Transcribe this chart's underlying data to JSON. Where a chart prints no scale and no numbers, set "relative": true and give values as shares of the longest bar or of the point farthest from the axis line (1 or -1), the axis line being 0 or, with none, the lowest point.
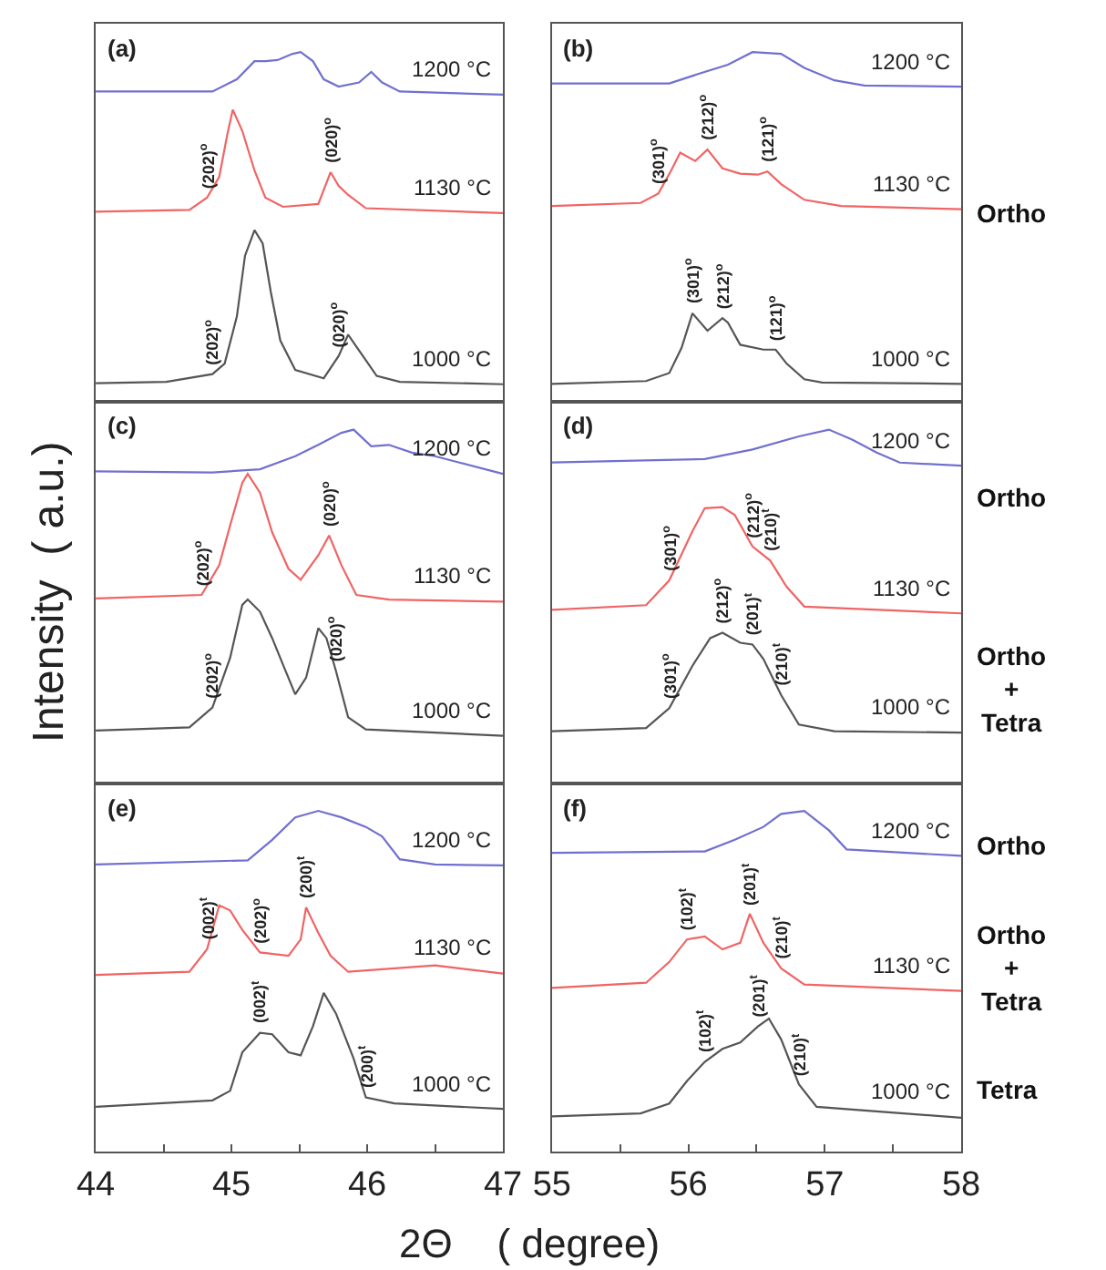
{
  "chart_data": [
    {
      "type": "line",
      "title": "(a)",
      "relative": true,
      "tick_labels": false,
      "xlim": [
        44,
        47
      ],
      "series": [
        {
          "name": "1200 °C",
          "color": "#7070d0",
          "x": [
            44.0,
            44.86,
            45.04,
            45.17,
            45.25,
            45.34,
            45.45,
            45.51,
            45.6,
            45.68,
            45.79,
            45.94,
            46.03,
            46.11,
            46.24,
            47.0
          ],
          "values": [
            0.887,
            0.887,
            0.922,
            0.974,
            0.974,
            0.977,
            0.995,
            1.0,
            0.974,
            0.922,
            0.901,
            0.913,
            0.943,
            0.913,
            0.887,
            0.878
          ]
        },
        {
          "name": "1130 °C",
          "color": "#f06464",
          "x": [
            44.0,
            44.69,
            44.82,
            44.91,
            44.97,
            45.01,
            45.08,
            45.17,
            45.25,
            45.38,
            45.64,
            45.73,
            45.79,
            45.86,
            45.99,
            47.0
          ],
          "values": [
            0.543,
            0.548,
            0.583,
            0.643,
            0.765,
            0.835,
            0.774,
            0.661,
            0.583,
            0.557,
            0.565,
            0.656,
            0.617,
            0.591,
            0.553,
            0.539
          ]
        },
        {
          "name": "1000 °C",
          "color": "#555555",
          "x": [
            44.0,
            44.52,
            44.86,
            44.95,
            45.04,
            45.1,
            45.17,
            45.23,
            45.29,
            45.36,
            45.47,
            45.68,
            45.79,
            45.86,
            45.92,
            45.99,
            46.07,
            46.24,
            47.0
          ],
          "values": [
            0.052,
            0.056,
            0.078,
            0.108,
            0.243,
            0.417,
            0.49,
            0.452,
            0.313,
            0.174,
            0.09,
            0.066,
            0.13,
            0.191,
            0.157,
            0.118,
            0.073,
            0.056,
            0.049
          ]
        }
      ],
      "annotations": [
        {
          "text": "(202)$^{o}$",
          "x": 44.82,
          "y": 0.583
        },
        {
          "text": "(020)$^{o}$",
          "x": 45.73,
          "y": 0.656
        },
        {
          "text": "(202)$^{o}$",
          "x": 44.86,
          "y": 0.078
        },
        {
          "text": "(020)$^{o}$",
          "x": 45.79,
          "y": 0.13
        }
      ]
    },
    {
      "type": "line",
      "title": "(b)",
      "relative": true,
      "tick_labels": false,
      "xlim": [
        55,
        58
      ],
      "series": [
        {
          "name": "1200 °C",
          "color": "#7070d0",
          "x": [
            55.0,
            55.86,
            56.07,
            56.29,
            56.47,
            56.68,
            56.85,
            57.07,
            57.29,
            58.0
          ],
          "values": [
            0.91,
            0.91,
            0.937,
            0.964,
            1.0,
            0.995,
            0.955,
            0.919,
            0.904,
            0.901
          ]
        },
        {
          "name": "1130 °C",
          "color": "#f06464",
          "x": [
            55.0,
            55.65,
            55.78,
            55.87,
            55.94,
            56.05,
            56.14,
            56.25,
            56.38,
            56.51,
            56.58,
            56.68,
            56.85,
            57.12,
            58.0
          ],
          "values": [
            0.559,
            0.568,
            0.595,
            0.658,
            0.712,
            0.688,
            0.721,
            0.667,
            0.652,
            0.649,
            0.658,
            0.622,
            0.577,
            0.559,
            0.55
          ]
        },
        {
          "name": "1000 °C",
          "color": "#555555",
          "x": [
            55.0,
            55.69,
            55.86,
            55.95,
            56.03,
            56.14,
            56.25,
            56.29,
            56.38,
            56.55,
            56.64,
            56.72,
            56.85,
            56.98,
            58.0
          ],
          "values": [
            0.05,
            0.058,
            0.081,
            0.153,
            0.252,
            0.202,
            0.238,
            0.225,
            0.162,
            0.148,
            0.148,
            0.108,
            0.063,
            0.054,
            0.05
          ]
        }
      ],
      "annotations": [
        {
          "text": "(301)$^{o}$",
          "x": 55.78,
          "y": 0.595
        },
        {
          "text": "(212)$^{o}$",
          "x": 56.14,
          "y": 0.721
        },
        {
          "text": "(121)$^{o}$",
          "x": 56.58,
          "y": 0.658
        },
        {
          "text": "(301)$^{o}$",
          "x": 56.03,
          "y": 0.252
        },
        {
          "text": "(212)$^{o}$",
          "x": 56.25,
          "y": 0.238
        },
        {
          "text": "(121)$^{o}$",
          "x": 56.64,
          "y": 0.148
        },
        "Ortho"
      ]
    },
    {
      "type": "line",
      "title": "(c)",
      "ylabel": "Intensity  ( a.u.)",
      "relative": true,
      "tick_labels": false,
      "xlim": [
        44,
        47
      ],
      "series": [
        {
          "name": "1200 °C",
          "color": "#7070d0",
          "x": [
            44.0,
            44.86,
            45.21,
            45.47,
            45.64,
            45.81,
            45.9,
            46.03,
            46.16,
            46.33,
            46.5,
            46.68,
            47.0
          ],
          "values": [
            0.882,
            0.879,
            0.888,
            0.925,
            0.957,
            0.991,
            1.0,
            0.953,
            0.957,
            0.935,
            0.925,
            0.907,
            0.875
          ]
        },
        {
          "name": "1130 °C",
          "color": "#f06464",
          "x": [
            44.0,
            44.78,
            44.91,
            44.99,
            45.08,
            45.12,
            45.21,
            45.3,
            45.42,
            45.51,
            45.64,
            45.72,
            45.81,
            45.92,
            46.16,
            47.0
          ],
          "values": [
            0.523,
            0.533,
            0.617,
            0.729,
            0.85,
            0.875,
            0.822,
            0.71,
            0.607,
            0.576,
            0.645,
            0.701,
            0.617,
            0.533,
            0.52,
            0.514
          ]
        },
        {
          "name": "1000 °C",
          "color": "#555555",
          "x": [
            44.0,
            44.69,
            44.86,
            44.99,
            45.08,
            45.12,
            45.21,
            45.3,
            45.38,
            45.47,
            45.55,
            45.64,
            45.7,
            45.77,
            45.86,
            45.99,
            47.0
          ],
          "values": [
            0.15,
            0.159,
            0.215,
            0.355,
            0.505,
            0.52,
            0.486,
            0.411,
            0.336,
            0.252,
            0.299,
            0.439,
            0.411,
            0.318,
            0.187,
            0.153,
            0.135
          ]
        }
      ],
      "annotations": [
        {
          "text": "(202)$^{o}$",
          "x": 44.78,
          "y": 0.533
        },
        {
          "text": "(020)$^{o}$",
          "x": 45.72,
          "y": 0.701
        },
        {
          "text": "(202)$^{o}$",
          "x": 44.86,
          "y": 0.215
        },
        {
          "text": "(020)$^{o}$",
          "x": 45.77,
          "y": 0.318
        }
      ]
    },
    {
      "type": "line",
      "title": "(d)",
      "relative": true,
      "tick_labels": false,
      "xlim": [
        55,
        58
      ],
      "series": [
        {
          "name": "1200 °C",
          "color": "#7070d0",
          "x": [
            55.0,
            56.12,
            56.47,
            56.81,
            57.03,
            57.2,
            57.38,
            57.55,
            58.0
          ],
          "values": [
            0.907,
            0.917,
            0.944,
            0.981,
            1.0,
            0.972,
            0.935,
            0.907,
            0.898
          ]
        },
        {
          "name": "1130 °C",
          "color": "#f06464",
          "x": [
            55.0,
            55.69,
            55.86,
            56.03,
            56.12,
            56.25,
            56.34,
            56.47,
            56.6,
            56.72,
            56.85,
            58.0
          ],
          "values": [
            0.491,
            0.504,
            0.574,
            0.713,
            0.778,
            0.781,
            0.759,
            0.67,
            0.63,
            0.556,
            0.5,
            0.481
          ]
        },
        {
          "name": "1000 °C",
          "color": "#555555",
          "x": [
            55.0,
            55.69,
            55.86,
            56.03,
            56.16,
            56.25,
            56.38,
            56.47,
            56.55,
            56.68,
            56.81,
            57.07,
            58.0
          ],
          "values": [
            0.148,
            0.157,
            0.213,
            0.333,
            0.411,
            0.426,
            0.398,
            0.393,
            0.352,
            0.25,
            0.167,
            0.148,
            0.144
          ]
        }
      ],
      "annotations": [
        {
          "text": "(301)$^{o}$",
          "x": 55.86,
          "y": 0.574
        },
        {
          "text": "(212)$^{o}$",
          "x": 56.47,
          "y": 0.67
        },
        {
          "text": "(210)$^{t}$",
          "x": 56.6,
          "y": 0.63
        },
        {
          "text": "(301)$^{o}$",
          "x": 55.86,
          "y": 0.213
        },
        {
          "text": "(212)$^{o}$",
          "x": 56.25,
          "y": 0.426
        },
        {
          "text": "(201)$^{t}$",
          "x": 56.47,
          "y": 0.393
        },
        {
          "text": "(210)$^{t}$",
          "x": 56.68,
          "y": 0.25
        },
        "Ortho",
        "Ortho\n+\nTetra"
      ]
    },
    {
      "type": "line",
      "title": "(e)",
      "xlabel": "2Θ    ( degree)",
      "relative": true,
      "tick_labels": "x",
      "xlim": [
        44,
        47
      ],
      "xticks": [
        44,
        {
          "value": 44.5,
          "label": null
        },
        45,
        {
          "value": 45.5,
          "label": null
        },
        46,
        {
          "value": 46.5,
          "label": null
        },
        47
      ],
      "series": [
        {
          "name": "1200 °C",
          "color": "#7070d0",
          "x": [
            44.0,
            45.12,
            45.3,
            45.47,
            45.64,
            45.81,
            45.99,
            46.11,
            46.24,
            46.5,
            47.0
          ],
          "values": [
            0.843,
            0.855,
            0.915,
            0.981,
            1.0,
            0.981,
            0.953,
            0.925,
            0.858,
            0.843,
            0.84
          ]
        },
        {
          "name": "1130 °C",
          "color": "#f06464",
          "x": [
            44.0,
            44.69,
            44.82,
            44.91,
            44.99,
            45.08,
            45.21,
            45.42,
            45.51,
            45.55,
            45.64,
            45.73,
            45.86,
            46.5,
            47.0
          ],
          "values": [
            0.519,
            0.528,
            0.594,
            0.723,
            0.708,
            0.651,
            0.585,
            0.575,
            0.623,
            0.717,
            0.642,
            0.575,
            0.528,
            0.547,
            0.523
          ]
        },
        {
          "name": "1000 °C",
          "color": "#555555",
          "x": [
            44.0,
            44.86,
            44.99,
            45.08,
            45.21,
            45.3,
            45.42,
            45.51,
            45.6,
            45.68,
            45.77,
            45.9,
            45.99,
            46.2,
            47.0
          ],
          "values": [
            0.132,
            0.151,
            0.179,
            0.292,
            0.349,
            0.345,
            0.292,
            0.283,
            0.368,
            0.466,
            0.406,
            0.274,
            0.16,
            0.142,
            0.126
          ]
        }
      ],
      "annotations": [
        {
          "text": "(002)$^{t}$",
          "x": 44.82,
          "y": 0.594
        },
        {
          "text": "(202)$^{o}$",
          "x": 45.21,
          "y": 0.585
        },
        {
          "text": "(200)$^{t}$",
          "x": 45.55,
          "y": 0.717
        },
        {
          "text": "(002)$^{t}$",
          "x": 45.21,
          "y": 0.349
        },
        {
          "text": "(200)$^{t}$",
          "x": 45.99,
          "y": 0.16
        }
      ]
    },
    {
      "type": "line",
      "title": "(f)",
      "relative": true,
      "tick_labels": "x",
      "xlim": [
        55,
        58
      ],
      "xticks": [
        55,
        {
          "value": 55.5,
          "label": null
        },
        56,
        {
          "value": 56.5,
          "label": null
        },
        57,
        {
          "value": 57.5,
          "label": null
        },
        58
      ],
      "series": [
        {
          "name": "1200 °C",
          "color": "#7070d0",
          "x": [
            55.0,
            56.12,
            56.34,
            56.55,
            56.68,
            56.85,
            57.03,
            57.16,
            58.0
          ],
          "values": [
            0.877,
            0.881,
            0.915,
            0.953,
            0.991,
            1.0,
            0.943,
            0.887,
            0.868
          ]
        },
        {
          "name": "1130 °C",
          "color": "#f06464",
          "x": [
            55.0,
            55.69,
            55.86,
            55.99,
            56.12,
            56.25,
            56.38,
            56.45,
            56.55,
            56.68,
            56.85,
            58.0
          ],
          "values": [
            0.481,
            0.496,
            0.557,
            0.623,
            0.632,
            0.594,
            0.613,
            0.698,
            0.613,
            0.538,
            0.491,
            0.472
          ]
        },
        {
          "name": "1000 °C",
          "color": "#555555",
          "x": [
            55.0,
            55.65,
            55.86,
            55.99,
            56.12,
            56.25,
            56.38,
            56.51,
            56.59,
            56.68,
            56.81,
            56.94,
            58.0
          ],
          "values": [
            0.104,
            0.113,
            0.142,
            0.208,
            0.264,
            0.302,
            0.321,
            0.368,
            0.391,
            0.33,
            0.198,
            0.132,
            0.1
          ]
        }
      ],
      "annotations": [
        {
          "text": "(102)$^{t}$",
          "x": 55.99,
          "y": 0.623
        },
        {
          "text": "(201)$^{t}$",
          "x": 56.45,
          "y": 0.698
        },
        {
          "text": "(210)$^{t}$",
          "x": 56.68,
          "y": 0.538
        },
        {
          "text": "(102)$^{t}$",
          "x": 56.12,
          "y": 0.264
        },
        {
          "text": "(201)$^{t}$",
          "x": 56.51,
          "y": 0.368
        },
        {
          "text": "(210)$^{t}$",
          "x": 56.81,
          "y": 0.198
        },
        "Ortho",
        "Ortho\n+\nTetra",
        "Tetra"
      ]
    }
  ]
}
